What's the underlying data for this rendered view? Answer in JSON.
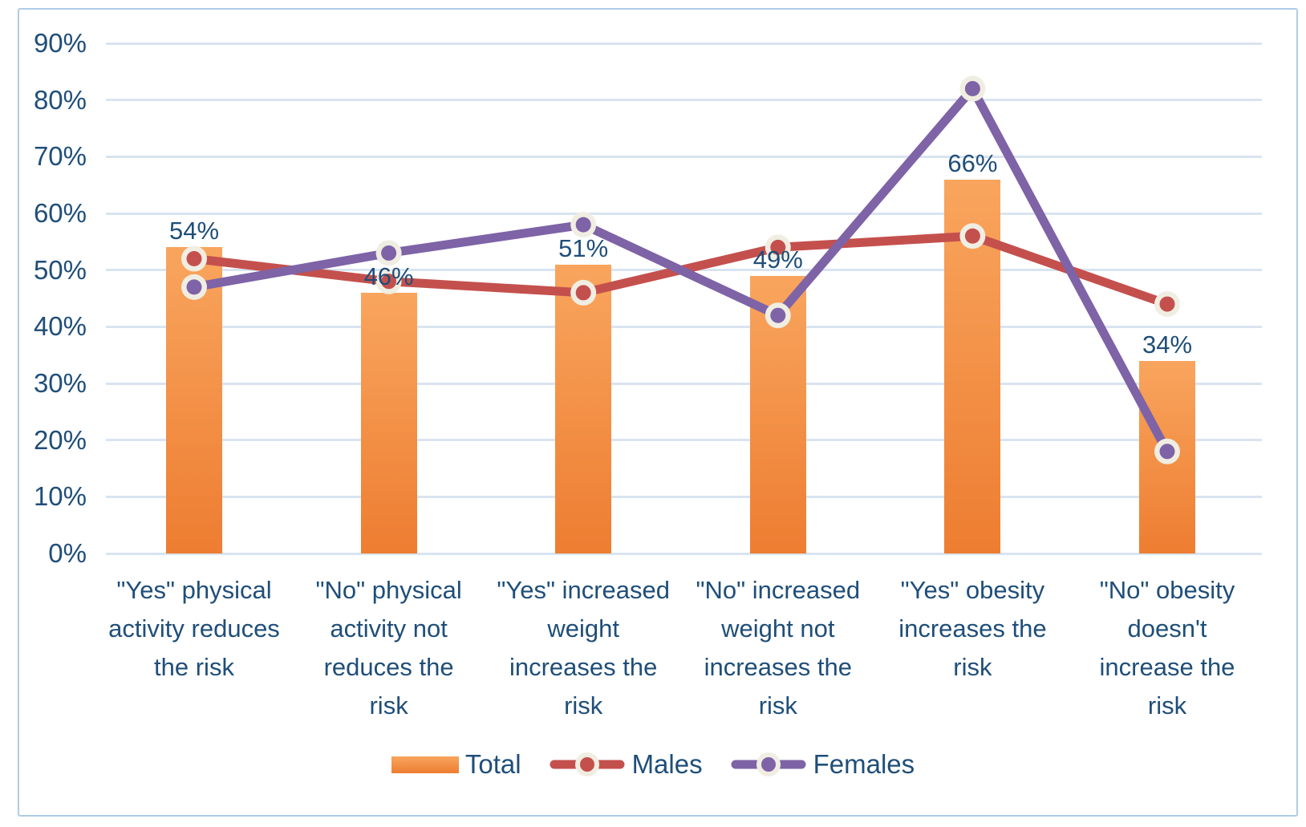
{
  "chart_data": {
    "type": "bar+line",
    "title": "",
    "categories": [
      "\"Yes\" physical\nactivity reduces\nthe risk",
      "\"No\" physical\nactivity not\nreduces the\nrisk",
      "\"Yes\" increased\nweight\nincreases the\nrisk",
      "\"No\" increased\nweight not\nincreases the\nrisk",
      "\"Yes\" obesity\nincreases the\nrisk",
      "\"No\" obesity\ndoesn't\nincrease the\nrisk"
    ],
    "y_ticks": [
      "0%",
      "10%",
      "20%",
      "30%",
      "40%",
      "50%",
      "60%",
      "70%",
      "80%",
      "90%"
    ],
    "ylim": [
      0,
      90
    ],
    "grid": true,
    "legend_position": "bottom",
    "bar_series": {
      "name": "Total",
      "values": [
        54,
        46,
        51,
        49,
        66,
        34
      ],
      "data_labels": [
        "54%",
        "46%",
        "51%",
        "49%",
        "66%",
        "34%"
      ],
      "color_top": "#F9A55E",
      "color_bottom": "#ED7D31"
    },
    "line_series": [
      {
        "name": "Males",
        "values": [
          52,
          48,
          46,
          54,
          56,
          44
        ],
        "color": "#C4504D"
      },
      {
        "name": "Females",
        "values": [
          47,
          53,
          58,
          42,
          82,
          18
        ],
        "color": "#7E63A7"
      }
    ],
    "marker_ring_color": "#F0EDE2",
    "axis_text_color": "#1F4E79",
    "gridline_color": "#D9E4F1",
    "frame_border_color": "#AECBE8"
  }
}
